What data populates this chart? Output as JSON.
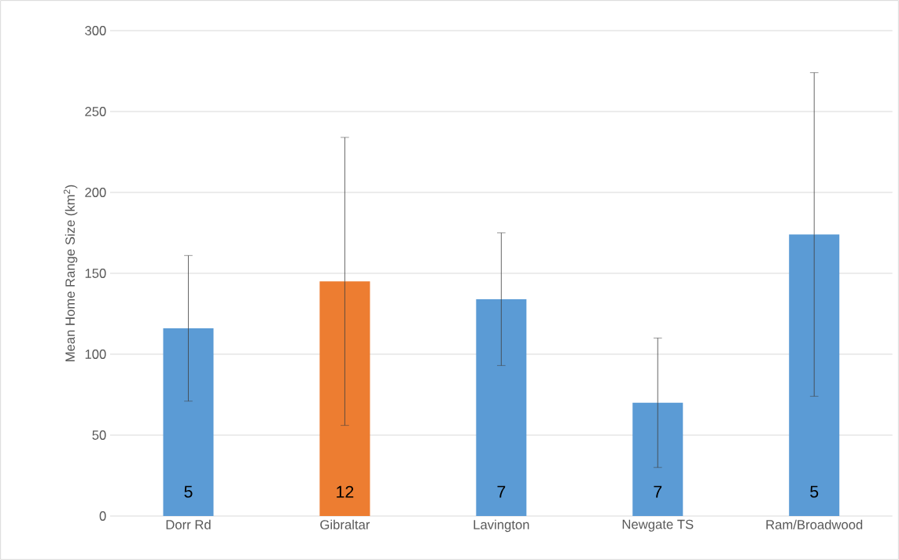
{
  "chart_data": {
    "type": "bar",
    "ylabel": "Mean Home Range Size (km$^{2}$)",
    "categories": [
      "Dorr Rd",
      "Gibraltar",
      "Lavington",
      "Newgate TS",
      "Ram/Broadwood"
    ],
    "values": [
      116,
      145,
      134,
      70,
      174
    ],
    "errors": [
      45,
      89,
      41,
      40,
      100
    ],
    "colors": [
      "#5b9bd5",
      "#ed7d31",
      "#5b9bd5",
      "#5b9bd5",
      "#5b9bd5"
    ],
    "ylim": [
      0,
      300
    ],
    "yticks": [
      0,
      50,
      100,
      150,
      200,
      250,
      300
    ],
    "grid": "y",
    "annotations": [
      "5",
      "12",
      "7",
      "7",
      "5"
    ]
  }
}
